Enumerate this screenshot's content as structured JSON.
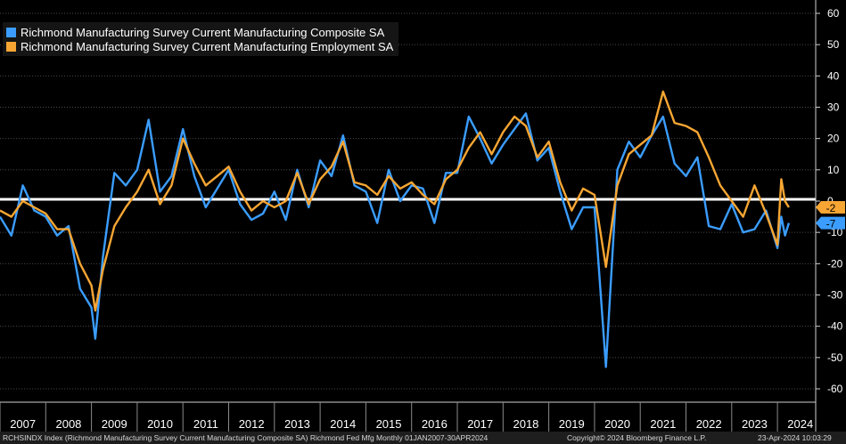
{
  "chart_data": {
    "type": "line",
    "title": "",
    "xlabel": "",
    "ylabel": "",
    "ylim": [
      -60,
      60
    ],
    "yticks": [
      60,
      50,
      40,
      30,
      20,
      10,
      0,
      -10,
      -20,
      -30,
      -40,
      -50,
      -60
    ],
    "x_range": [
      "2007-01",
      "2024-03"
    ],
    "year_labels": [
      "2007",
      "2008",
      "2009",
      "2010",
      "2011",
      "2012",
      "2013",
      "2014",
      "2015",
      "2016",
      "2017",
      "2018",
      "2019",
      "2020",
      "2021",
      "2022",
      "2023",
      "2024"
    ],
    "reference_line": 0,
    "legend_position": "top-left",
    "series": [
      {
        "name": "Richmond Manufacturing Survey Current Manufacturing Composite SA",
        "color": "#3b9dff",
        "last_value": "-7",
        "points": [
          [
            "2007-01",
            -5
          ],
          [
            "2007-04",
            -11
          ],
          [
            "2007-07",
            5
          ],
          [
            "2007-10",
            -3
          ],
          [
            "2008-01",
            -5
          ],
          [
            "2008-04",
            -11
          ],
          [
            "2008-07",
            -8
          ],
          [
            "2008-10",
            -28
          ],
          [
            "2009-01",
            -34
          ],
          [
            "2009-02",
            -44
          ],
          [
            "2009-04",
            -18
          ],
          [
            "2009-07",
            9
          ],
          [
            "2009-10",
            5
          ],
          [
            "2010-01",
            10
          ],
          [
            "2010-04",
            26
          ],
          [
            "2010-07",
            3
          ],
          [
            "2010-10",
            8
          ],
          [
            "2011-01",
            23
          ],
          [
            "2011-04",
            8
          ],
          [
            "2011-07",
            -2
          ],
          [
            "2011-10",
            4
          ],
          [
            "2012-01",
            10
          ],
          [
            "2012-04",
            -1
          ],
          [
            "2012-07",
            -6
          ],
          [
            "2012-10",
            -4
          ],
          [
            "2013-01",
            3
          ],
          [
            "2013-04",
            -6
          ],
          [
            "2013-07",
            10
          ],
          [
            "2013-10",
            -2
          ],
          [
            "2014-01",
            13
          ],
          [
            "2014-04",
            8
          ],
          [
            "2014-07",
            21
          ],
          [
            "2014-10",
            5
          ],
          [
            "2015-01",
            3
          ],
          [
            "2015-04",
            -7
          ],
          [
            "2015-07",
            10
          ],
          [
            "2015-10",
            0
          ],
          [
            "2016-01",
            5
          ],
          [
            "2016-04",
            4
          ],
          [
            "2016-07",
            -7
          ],
          [
            "2016-10",
            9
          ],
          [
            "2017-01",
            9
          ],
          [
            "2017-04",
            27
          ],
          [
            "2017-07",
            20
          ],
          [
            "2017-10",
            12
          ],
          [
            "2018-01",
            18
          ],
          [
            "2018-04",
            23
          ],
          [
            "2018-07",
            28
          ],
          [
            "2018-10",
            13
          ],
          [
            "2019-01",
            17
          ],
          [
            "2019-04",
            3
          ],
          [
            "2019-07",
            -9
          ],
          [
            "2019-10",
            -2
          ],
          [
            "2020-01",
            -2
          ],
          [
            "2020-04",
            -53
          ],
          [
            "2020-07",
            10
          ],
          [
            "2020-10",
            19
          ],
          [
            "2021-01",
            14
          ],
          [
            "2021-04",
            21
          ],
          [
            "2021-07",
            27
          ],
          [
            "2021-10",
            12
          ],
          [
            "2022-01",
            8
          ],
          [
            "2022-04",
            14
          ],
          [
            "2022-07",
            -8
          ],
          [
            "2022-10",
            -9
          ],
          [
            "2023-01",
            -1
          ],
          [
            "2023-04",
            -10
          ],
          [
            "2023-07",
            -9
          ],
          [
            "2023-10",
            -3
          ],
          [
            "2024-01",
            -15
          ],
          [
            "2024-02",
            -5
          ],
          [
            "2024-03",
            -11
          ],
          [
            "2024-04",
            -7
          ]
        ]
      },
      {
        "name": "Richmond Manufacturing Survey Current Manufacturing Employment SA",
        "color": "#f7a633",
        "last_value": "-2",
        "points": [
          [
            "2007-01",
            -3
          ],
          [
            "2007-04",
            -5
          ],
          [
            "2007-07",
            0
          ],
          [
            "2007-10",
            -2
          ],
          [
            "2008-01",
            -4
          ],
          [
            "2008-04",
            -9
          ],
          [
            "2008-07",
            -9
          ],
          [
            "2008-10",
            -20
          ],
          [
            "2009-01",
            -27
          ],
          [
            "2009-02",
            -35
          ],
          [
            "2009-04",
            -22
          ],
          [
            "2009-07",
            -8
          ],
          [
            "2009-10",
            -2
          ],
          [
            "2010-01",
            3
          ],
          [
            "2010-04",
            10
          ],
          [
            "2010-07",
            -1
          ],
          [
            "2010-10",
            5
          ],
          [
            "2011-01",
            20
          ],
          [
            "2011-04",
            12
          ],
          [
            "2011-07",
            5
          ],
          [
            "2011-10",
            8
          ],
          [
            "2012-01",
            11
          ],
          [
            "2012-04",
            3
          ],
          [
            "2012-07",
            -3
          ],
          [
            "2012-10",
            0
          ],
          [
            "2013-01",
            -2
          ],
          [
            "2013-04",
            0
          ],
          [
            "2013-07",
            9
          ],
          [
            "2013-10",
            -1
          ],
          [
            "2014-01",
            7
          ],
          [
            "2014-04",
            11
          ],
          [
            "2014-07",
            19
          ],
          [
            "2014-10",
            6
          ],
          [
            "2015-01",
            5
          ],
          [
            "2015-04",
            2
          ],
          [
            "2015-07",
            8
          ],
          [
            "2015-10",
            4
          ],
          [
            "2016-01",
            6
          ],
          [
            "2016-04",
            2
          ],
          [
            "2016-07",
            -1
          ],
          [
            "2016-10",
            7
          ],
          [
            "2017-01",
            10
          ],
          [
            "2017-04",
            17
          ],
          [
            "2017-07",
            22
          ],
          [
            "2017-10",
            15
          ],
          [
            "2018-01",
            22
          ],
          [
            "2018-04",
            27
          ],
          [
            "2018-07",
            24
          ],
          [
            "2018-10",
            14
          ],
          [
            "2019-01",
            19
          ],
          [
            "2019-04",
            6
          ],
          [
            "2019-07",
            -3
          ],
          [
            "2019-10",
            4
          ],
          [
            "2020-01",
            2
          ],
          [
            "2020-04",
            -21
          ],
          [
            "2020-07",
            5
          ],
          [
            "2020-10",
            15
          ],
          [
            "2021-01",
            18
          ],
          [
            "2021-04",
            21
          ],
          [
            "2021-07",
            35
          ],
          [
            "2021-10",
            25
          ],
          [
            "2022-01",
            24
          ],
          [
            "2022-04",
            22
          ],
          [
            "2022-07",
            14
          ],
          [
            "2022-10",
            5
          ],
          [
            "2023-01",
            0
          ],
          [
            "2023-04",
            -5
          ],
          [
            "2023-07",
            5
          ],
          [
            "2023-10",
            -4
          ],
          [
            "2024-01",
            -14
          ],
          [
            "2024-02",
            7
          ],
          [
            "2024-03",
            0
          ],
          [
            "2024-04",
            -2
          ]
        ]
      }
    ]
  },
  "footer": {
    "left": "RCHSINDX Index (Richmond Manufacturing Survey Current Manufacturing Composite SA) Richmond Fed Mfg  Monthly 01JAN2007-30APR2024",
    "center": "Copyright© 2024 Bloomberg Finance L.P.",
    "right": "23-Apr-2024 10:03:29"
  }
}
